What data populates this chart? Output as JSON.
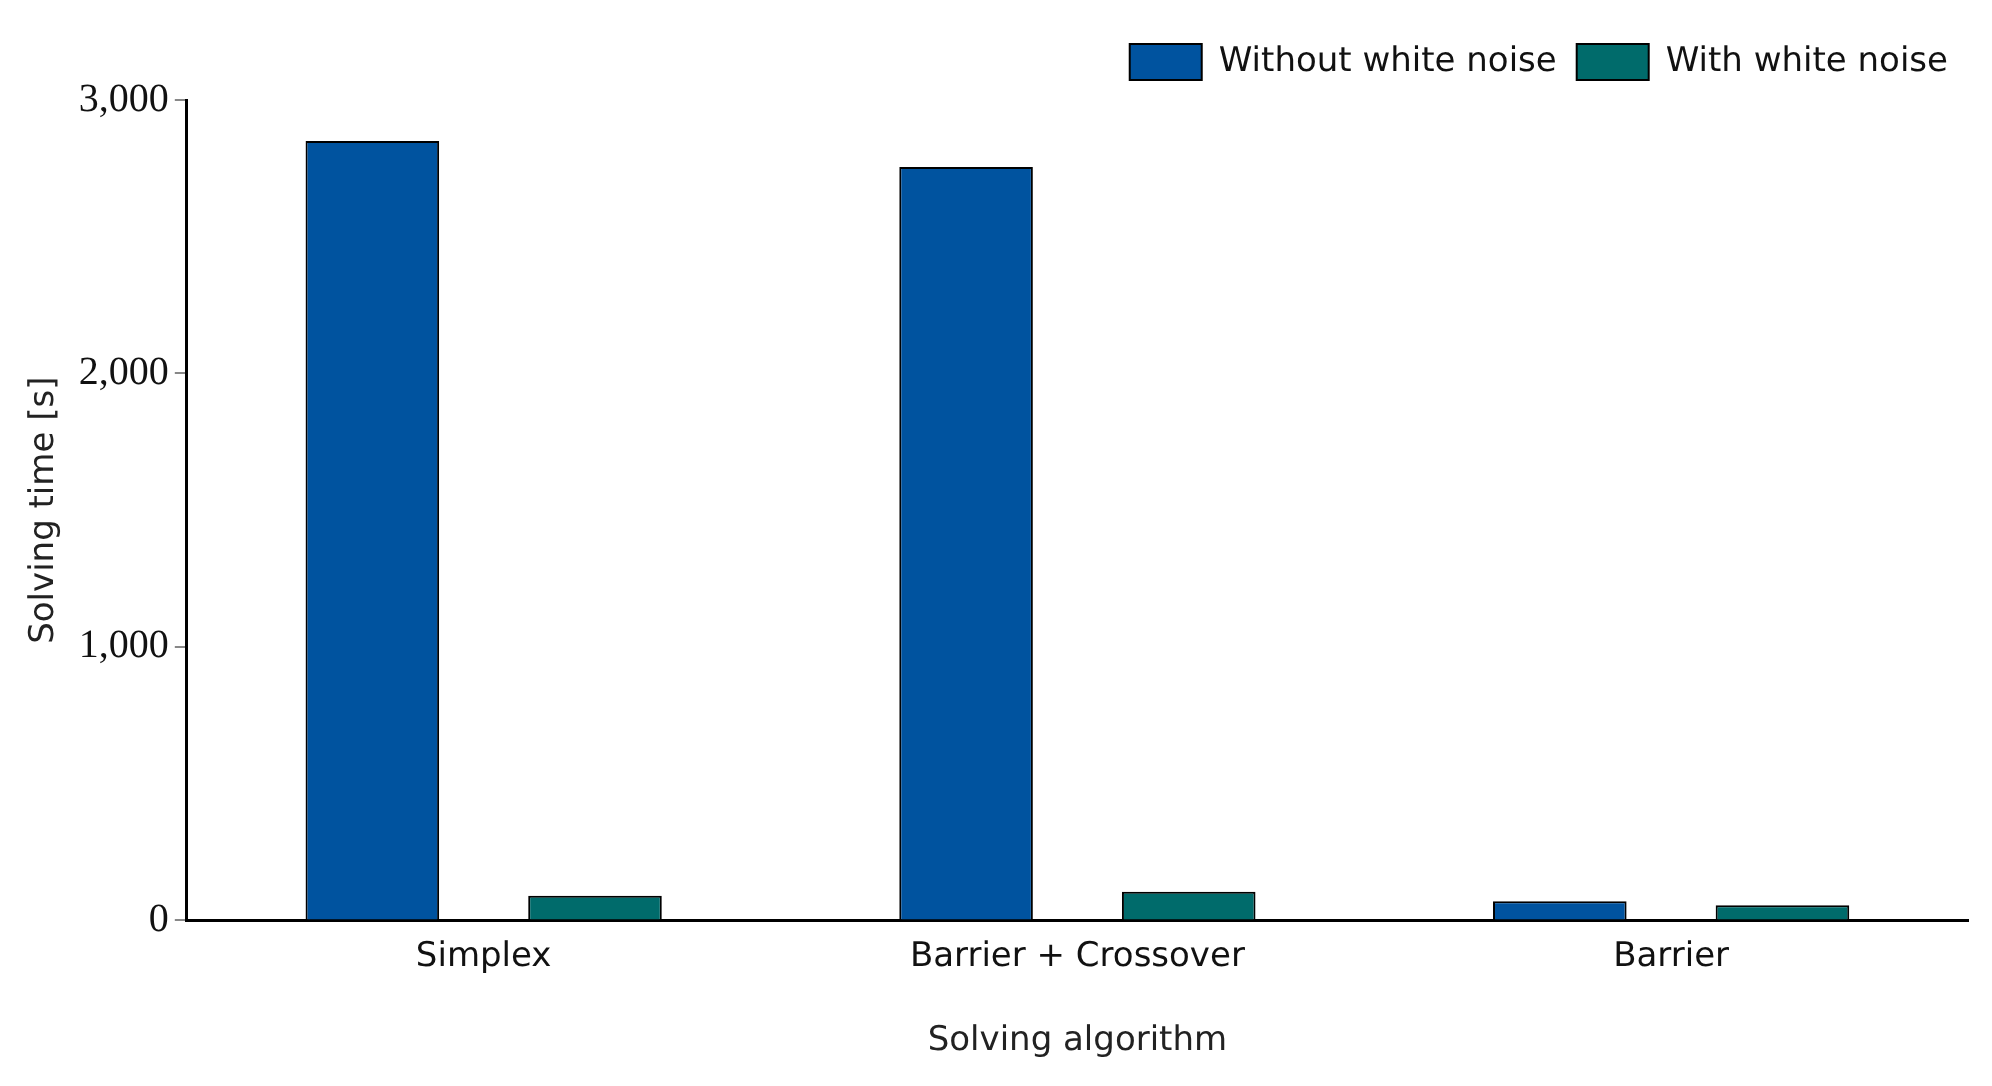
{
  "chart_data": {
    "type": "bar",
    "xlabel": "Solving algorithm",
    "ylabel": "Solving time [s]",
    "categories": [
      "Simplex",
      "Barrier + Crossover",
      "Barrier"
    ],
    "series": [
      {
        "name": "Without white noise",
        "color": "#00539f",
        "values": [
          2850,
          2755,
          70
        ]
      },
      {
        "name": "With white noise",
        "color": "#006b6b",
        "values": [
          90,
          105,
          55
        ]
      }
    ],
    "ylim": [
      0,
      3000
    ],
    "yticks": [
      {
        "value": 0,
        "label": "0"
      },
      {
        "value": 1000,
        "label": "1,000"
      },
      {
        "value": 2000,
        "label": "2,000"
      },
      {
        "value": 3000,
        "label": "3,000"
      }
    ],
    "grid": false,
    "legend": "top right"
  }
}
